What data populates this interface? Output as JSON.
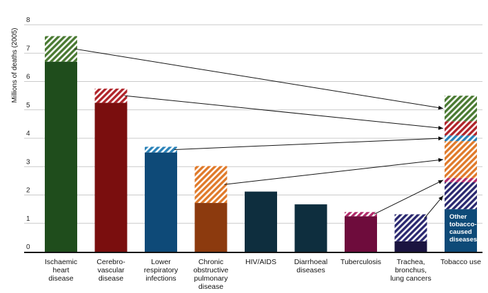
{
  "chart_data": {
    "type": "bar",
    "stacked": true,
    "title": "",
    "ylabel": "Millions of deaths (2005)",
    "xlabel": "",
    "ylim": [
      0,
      8
    ],
    "yticks": [
      "0",
      "1",
      "2",
      "3",
      "4",
      "5",
      "6",
      "7",
      "8"
    ],
    "grid": true,
    "legend": "none",
    "categories": [
      {
        "lines": [
          "Ischaemic",
          "heart",
          "disease"
        ],
        "total": 7.6,
        "tobacco": 0.9,
        "base_color": "#1f4d1c",
        "hatch_color": "#4a7a32"
      },
      {
        "lines": [
          "Cerebro-",
          "vascular",
          "disease"
        ],
        "total": 5.75,
        "tobacco": 0.5,
        "base_color": "#7a0e0e",
        "hatch_color": "#b0242a"
      },
      {
        "lines": [
          "Lower",
          "respiratory",
          "infections"
        ],
        "total": 3.7,
        "tobacco": 0.2,
        "base_color": "#0e4a78",
        "hatch_color": "#2a82b8"
      },
      {
        "lines": [
          "Chronic",
          "obstructive",
          "pulmonary",
          "disease"
        ],
        "total": 3.02,
        "tobacco": 1.3,
        "base_color": "#8c3a0e",
        "hatch_color": "#e07a2a"
      },
      {
        "lines": [
          "HIV/AIDS"
        ],
        "total": 2.12,
        "tobacco": 0,
        "base_color": "#0e2e3e",
        "hatch_color": "#0e2e3e"
      },
      {
        "lines": [
          "Diarrhoeal",
          "diseases"
        ],
        "total": 1.67,
        "tobacco": 0,
        "base_color": "#0e2e3e",
        "hatch_color": "#0e2e3e"
      },
      {
        "lines": [
          "Tuberculosis"
        ],
        "total": 1.4,
        "tobacco": 0.15,
        "base_color": "#6e0c3c",
        "hatch_color": "#b02a6a"
      },
      {
        "lines": [
          "Trachea,",
          "bronchus,",
          "lung cancers"
        ],
        "total": 1.32,
        "tobacco": 0.95,
        "base_color": "#1a1440",
        "hatch_color": "#2a2870"
      }
    ],
    "tobacco_bar": {
      "lines": [
        "Tobacco use"
      ],
      "base_value": 1.5,
      "base_color": "#0e4a78",
      "base_label": [
        "Other",
        "tobacco-",
        "caused",
        "diseases*"
      ],
      "segments": [
        {
          "value": 0.95,
          "color": "#2a2870",
          "source": 7
        },
        {
          "value": 0.15,
          "color": "#b02a6a",
          "source": 6
        },
        {
          "value": 1.3,
          "color": "#e07a2a",
          "source": 3
        },
        {
          "value": 0.2,
          "color": "#2a82b8",
          "source": 2
        },
        {
          "value": 0.5,
          "color": "#b0242a",
          "source": 1
        },
        {
          "value": 0.9,
          "color": "#4a7a32",
          "source": 0
        }
      ]
    }
  }
}
